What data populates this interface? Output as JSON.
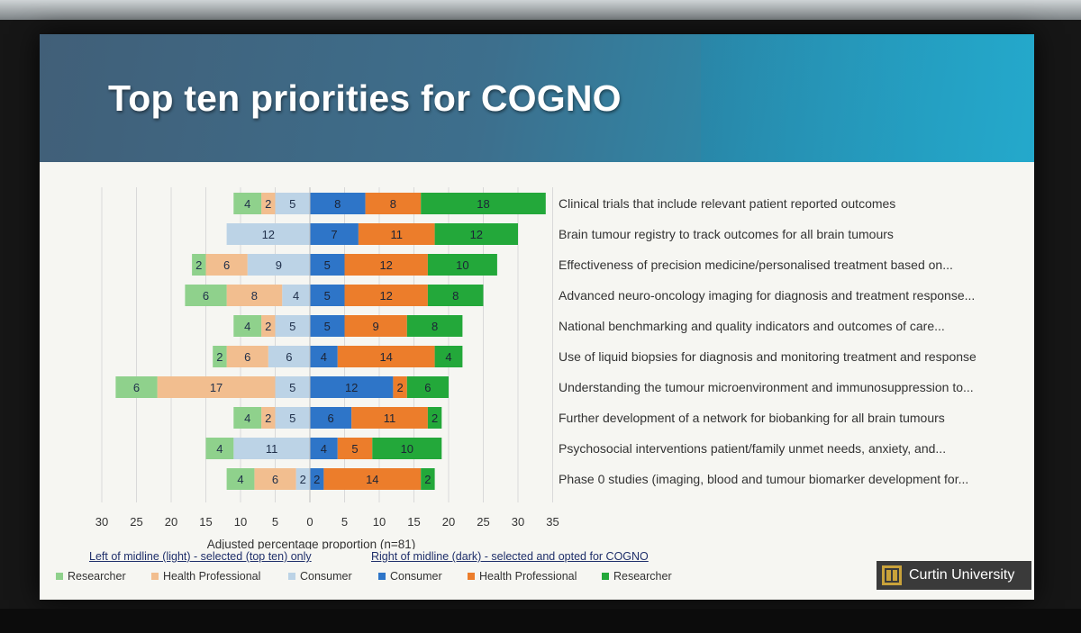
{
  "title": "Top ten priorities for COGNO",
  "legend": {
    "left_heading": "Left of midline (light) - selected (top ten) only",
    "right_heading": "Right of midline (dark) - selected and opted for COGNO",
    "items": [
      {
        "label": "Researcher",
        "color": "#8fd18c"
      },
      {
        "label": "Health Professional",
        "color": "#f2be8f"
      },
      {
        "label": "Consumer",
        "color": "#bcd3e6"
      },
      {
        "label": "Consumer",
        "color": "#2e75c8"
      },
      {
        "label": "Health Professional",
        "color": "#ec7d2b"
      },
      {
        "label": "Researcher",
        "color": "#23a83a"
      }
    ]
  },
  "logo": {
    "text": "Curtin University"
  },
  "chart_data": {
    "type": "bar",
    "orientation": "horizontal",
    "stacked": "diverging",
    "xlabel": "Adjusted percentage proportion (n=81)",
    "xlim": [
      -30,
      35
    ],
    "x_ticks": [
      "30",
      "25",
      "20",
      "15",
      "10",
      "5",
      "0",
      "5",
      "10",
      "15",
      "20",
      "25",
      "30",
      "35"
    ],
    "grid": true,
    "categories": [
      "Clinical trials that include relevant patient reported outcomes",
      "Brain tumour registry to track outcomes for all brain tumours",
      "Effectiveness of precision medicine/personalised treatment based on...",
      "Advanced neuro-oncology imaging for diagnosis and treatment response...",
      "National benchmarking and quality indicators and outcomes of care...",
      "Use of liquid biopsies for diagnosis and monitoring treatment and response",
      "Understanding the tumour microenvironment and immunosuppression to...",
      "Further development of a network for biobanking for all brain tumours",
      "Psychosocial interventions patient/family unmet needs, anxiety, and...",
      "Phase 0 studies (imaging, blood and tumour biomarker development for..."
    ],
    "left_series": [
      {
        "name": "Consumer",
        "color": "#bcd3e6",
        "values": [
          5,
          12,
          9,
          4,
          5,
          6,
          5,
          5,
          11,
          2
        ]
      },
      {
        "name": "Health Professional",
        "color": "#f2be8f",
        "values": [
          2,
          0,
          6,
          8,
          2,
          6,
          17,
          2,
          0,
          6
        ]
      },
      {
        "name": "Researcher",
        "color": "#8fd18c",
        "values": [
          4,
          0,
          2,
          6,
          4,
          2,
          6,
          4,
          4,
          4
        ]
      }
    ],
    "right_series": [
      {
        "name": "Consumer",
        "color": "#2e75c8",
        "values": [
          8,
          7,
          5,
          5,
          5,
          4,
          12,
          6,
          4,
          2
        ]
      },
      {
        "name": "Health Professional",
        "color": "#ec7d2b",
        "values": [
          8,
          11,
          12,
          12,
          9,
          14,
          2,
          11,
          5,
          14
        ]
      },
      {
        "name": "Researcher",
        "color": "#23a83a",
        "values": [
          18,
          12,
          10,
          8,
          8,
          4,
          6,
          2,
          10,
          2
        ]
      }
    ]
  }
}
